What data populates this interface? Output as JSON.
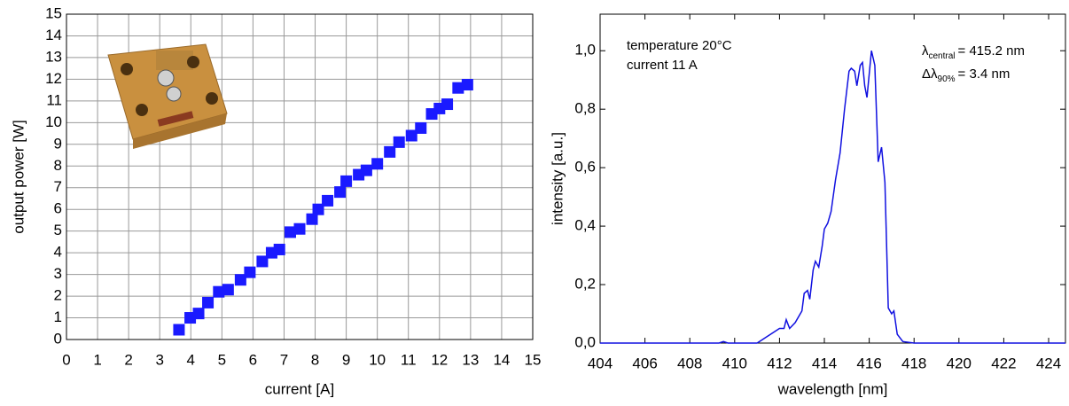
{
  "chart_data": [
    {
      "type": "scatter",
      "xlabel": "current [A]",
      "ylabel": "output power [W]",
      "x": [
        3.62,
        3.98,
        4.25,
        4.55,
        4.9,
        5.2,
        5.6,
        5.9,
        6.3,
        6.6,
        6.85,
        7.2,
        7.5,
        7.9,
        8.1,
        8.4,
        8.8,
        9.0,
        9.4,
        9.65,
        10.0,
        10.4,
        10.7,
        11.1,
        11.4,
        11.75,
        12.0,
        12.25,
        12.6,
        12.9
      ],
      "values": [
        0.45,
        1.0,
        1.2,
        1.7,
        2.2,
        2.3,
        2.75,
        3.1,
        3.6,
        4.0,
        4.15,
        4.95,
        5.1,
        5.55,
        6.0,
        6.4,
        6.8,
        7.3,
        7.6,
        7.8,
        8.1,
        8.65,
        9.1,
        9.4,
        9.75,
        10.4,
        10.65,
        10.85,
        11.6,
        11.75
      ],
      "color": "#1a1aff",
      "xlim": [
        0,
        15
      ],
      "ylim": [
        0,
        15
      ],
      "xticks": [
        0,
        1,
        2,
        3,
        4,
        5,
        6,
        7,
        8,
        9,
        10,
        11,
        12,
        13,
        14,
        15
      ],
      "yticks": [
        0,
        1,
        2,
        3,
        4,
        5,
        6,
        7,
        8,
        9,
        10,
        11,
        12,
        13,
        14,
        15
      ],
      "grid": true
    },
    {
      "type": "line",
      "xlabel": "wavelength [nm]",
      "ylabel": "intensity [a.u.]",
      "x": [
        404,
        409.3,
        409.5,
        409.7,
        411,
        411.2,
        411.6,
        412,
        412.2,
        412.3,
        412.45,
        412.7,
        413,
        413.1,
        413.25,
        413.35,
        413.5,
        413.6,
        413.75,
        413.9,
        414.0,
        414.15,
        414.3,
        414.5,
        414.7,
        414.9,
        415.1,
        415.2,
        415.35,
        415.45,
        415.6,
        415.7,
        415.8,
        415.9,
        416.1,
        416.25,
        416.4,
        416.55,
        416.7,
        416.85,
        417,
        417.1,
        417.25,
        417.5,
        418,
        424.75
      ],
      "values": [
        0,
        0,
        0.005,
        0,
        0,
        0.01,
        0.03,
        0.05,
        0.05,
        0.08,
        0.05,
        0.07,
        0.11,
        0.17,
        0.18,
        0.15,
        0.25,
        0.28,
        0.26,
        0.33,
        0.39,
        0.41,
        0.45,
        0.56,
        0.65,
        0.8,
        0.93,
        0.94,
        0.93,
        0.88,
        0.95,
        0.96,
        0.88,
        0.84,
        1.0,
        0.95,
        0.62,
        0.67,
        0.55,
        0.12,
        0.1,
        0.11,
        0.03,
        0.005,
        0,
        0
      ],
      "color": "#1010e0",
      "xlim": [
        404,
        424.75
      ],
      "ylim": [
        0,
        1.125
      ],
      "xticks": [
        404,
        406,
        408,
        410,
        412,
        414,
        416,
        418,
        420,
        422,
        424
      ],
      "yticks": [
        {
          "value": 0,
          "label": "0,0"
        },
        {
          "value": 0.2,
          "label": "0,2"
        },
        {
          "value": 0.4,
          "label": "0,4"
        },
        {
          "value": 0.6,
          "label": "0,6"
        },
        {
          "value": 0.8,
          "label": "0,8"
        },
        {
          "value": 1.0,
          "label": "1,0"
        }
      ],
      "grid": false,
      "annotations": [
        "temperature 20°C",
        "current 11 A"
      ],
      "formula_annotations": [
        [
          "λ",
          "central",
          "= 415.2 nm"
        ],
        [
          "Δλ",
          "90%",
          "= 3.4 nm"
        ]
      ]
    }
  ]
}
